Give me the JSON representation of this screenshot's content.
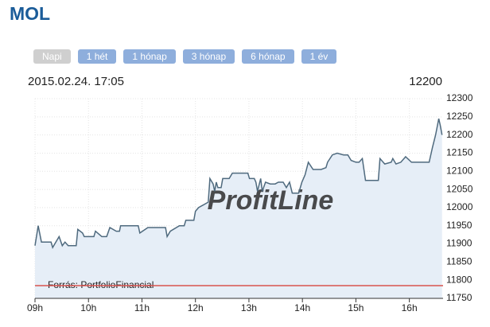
{
  "title": "MOL",
  "buttons": [
    "Napi",
    "1 hét",
    "1 hónap",
    "3 hónap",
    "6 hónap",
    "1 év"
  ],
  "chart_data": {
    "type": "line",
    "timestamp": "2015.02.24. 17:05",
    "last_price": 12200,
    "watermark": "ProfitLine",
    "source": "Forrás: PortfolioFinancial",
    "color": "#4f6a7e",
    "fill": "#e6eef7",
    "reference_line": {
      "value": 11785,
      "color": "#d9534f"
    },
    "grid": true,
    "x": [
      9.0,
      9.06,
      9.12,
      9.3,
      9.33,
      9.39,
      9.45,
      9.51,
      9.56,
      9.62,
      9.77,
      9.8,
      9.89,
      9.92,
      10.1,
      10.13,
      10.25,
      10.34,
      10.4,
      10.52,
      10.58,
      10.6,
      10.93,
      10.96,
      11.11,
      11.44,
      11.47,
      11.53,
      11.7,
      11.79,
      11.82,
      11.97,
      12.0,
      12.06,
      12.24,
      12.27,
      12.33,
      12.36,
      12.39,
      12.42,
      12.48,
      12.51,
      12.63,
      12.69,
      12.8,
      12.98,
      13.01,
      13.1,
      13.13,
      13.16,
      13.22,
      13.25,
      13.31,
      13.4,
      13.49,
      13.55,
      13.64,
      13.7,
      13.76,
      13.81,
      13.93,
      13.99,
      14.05,
      14.11,
      14.2,
      14.35,
      14.44,
      14.47,
      14.56,
      14.65,
      14.77,
      14.85,
      14.91,
      15.0,
      15.06,
      15.12,
      15.18,
      15.33,
      15.42,
      15.45,
      15.54,
      15.66,
      15.69,
      15.75,
      15.84,
      15.93,
      16.04,
      16.19,
      16.37,
      16.43,
      16.49,
      16.55,
      16.58,
      16.61
    ],
    "values": [
      11895,
      11950,
      11905,
      11905,
      11890,
      11905,
      11920,
      11895,
      11905,
      11895,
      11895,
      11940,
      11930,
      11920,
      11920,
      11935,
      11920,
      11920,
      11945,
      11935,
      11935,
      11950,
      11950,
      11930,
      11945,
      11945,
      11920,
      11935,
      11950,
      11950,
      11965,
      11965,
      11990,
      12000,
      12015,
      12080,
      12065,
      12045,
      12070,
      12055,
      12055,
      12080,
      12080,
      12095,
      12095,
      12095,
      12080,
      12080,
      12070,
      12045,
      12080,
      12045,
      12070,
      12065,
      12065,
      12070,
      12070,
      12055,
      12070,
      12040,
      12040,
      12070,
      12090,
      12125,
      12105,
      12105,
      12110,
      12125,
      12145,
      12150,
      12145,
      12145,
      12130,
      12125,
      12125,
      12135,
      12075,
      12075,
      12075,
      12135,
      12120,
      12125,
      12135,
      12120,
      12125,
      12140,
      12125,
      12125,
      12125,
      12165,
      12200,
      12245,
      12225,
      12200
    ],
    "xlim": [
      9,
      16.63
    ],
    "xticks": [
      {
        "value": 9,
        "label": "09h"
      },
      {
        "value": 10,
        "label": "10h"
      },
      {
        "value": 11,
        "label": "11h"
      },
      {
        "value": 12,
        "label": "12h"
      },
      {
        "value": 13,
        "label": "13h"
      },
      {
        "value": 14,
        "label": "14h"
      },
      {
        "value": 15,
        "label": "15h"
      },
      {
        "value": 16,
        "label": "16h"
      }
    ],
    "ylim": [
      11750,
      12300
    ],
    "yticks": [
      11750,
      11800,
      11850,
      11900,
      11950,
      12000,
      12050,
      12100,
      12150,
      12200,
      12250,
      12300
    ]
  }
}
